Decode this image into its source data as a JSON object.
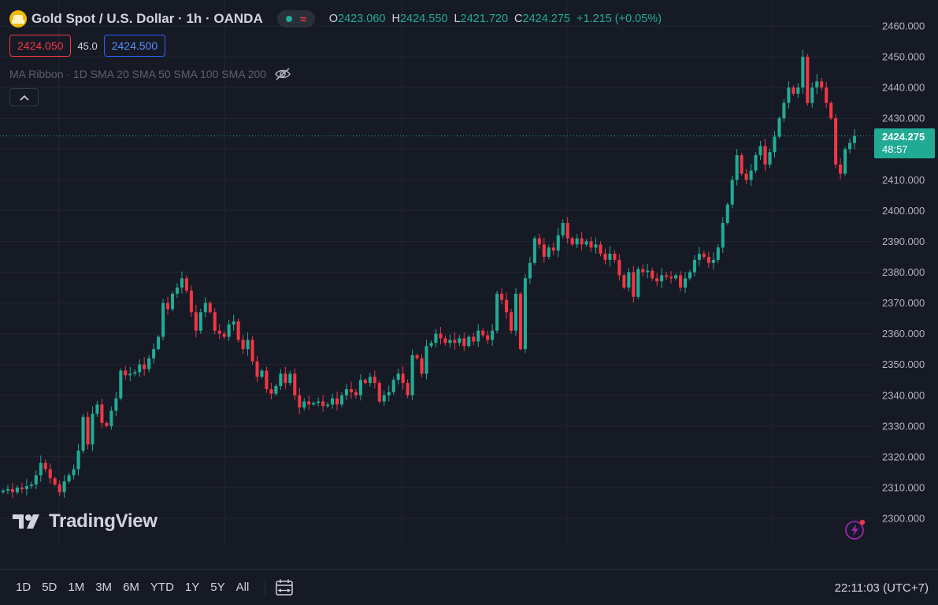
{
  "header": {
    "symbol_title": "Gold Spot / U.S. Dollar · 1h · OANDA",
    "ohlc": [
      {
        "key": "O",
        "value": "2423.060"
      },
      {
        "key": "H",
        "value": "2424.550"
      },
      {
        "key": "L",
        "value": "2421.720"
      },
      {
        "key": "C",
        "value": "2424.275"
      }
    ],
    "change": "+1.215 (+0.05%)",
    "bid": "2424.050",
    "spread": "45.0",
    "ask": "2424.500",
    "indicator": "MA Ribbon · 1D SMA 20 SMA 50 SMA 100 SMA 200"
  },
  "brand": {
    "name": "TradingView"
  },
  "price_axis": {
    "current_price": "2424.275",
    "countdown": "48:57"
  },
  "bottom_bar": {
    "ranges": [
      "1D",
      "5D",
      "1M",
      "3M",
      "6M",
      "YTD",
      "1Y",
      "5Y",
      "All"
    ],
    "clock": "22:11:03 (UTC+7)"
  },
  "colors": {
    "up": "#22ab94",
    "down": "#f23645",
    "background": "#161a25",
    "grid": "#232632",
    "accent": "#2962ff"
  },
  "icons": [
    "gold-symbol-icon",
    "eye-off-icon",
    "chevron-up-icon",
    "tradingview-logo-icon",
    "flash-icon",
    "calendar-range-icon"
  ],
  "chart_data": {
    "type": "candlestick",
    "ylim": [
      2300,
      2460
    ],
    "yticks": [
      "2300.000",
      "2310.000",
      "2320.000",
      "2330.000",
      "2340.000",
      "2350.000",
      "2360.000",
      "2370.000",
      "2380.000",
      "2390.000",
      "2400.000",
      "2410.000",
      "2420.000",
      "2430.000",
      "2440.000",
      "2450.000",
      "2460.000"
    ],
    "grid": true,
    "last_price": 2424.275,
    "closes": [
      2309,
      2309.5,
      2308.5,
      2310,
      2309.5,
      2310.5,
      2311,
      2314,
      2318,
      2316,
      2313,
      2311,
      2308.5,
      2312,
      2314,
      2316,
      2322,
      2333,
      2324,
      2334,
      2337,
      2331,
      2330,
      2335,
      2339,
      2348,
      2346.5,
      2347,
      2347.5,
      2350,
      2348.5,
      2352,
      2355,
      2359,
      2370,
      2368,
      2373,
      2375,
      2378,
      2374,
      2367,
      2361,
      2367,
      2370,
      2367,
      2361,
      2360,
      2359,
      2363,
      2364,
      2358,
      2355,
      2358,
      2351,
      2346,
      2348,
      2342,
      2340.5,
      2343,
      2347,
      2344,
      2347,
      2340,
      2336,
      2338,
      2337,
      2337.5,
      2338,
      2336.5,
      2337,
      2339,
      2337,
      2340,
      2342,
      2341,
      2340,
      2345,
      2344,
      2346,
      2344,
      2338,
      2340,
      2341,
      2345,
      2347,
      2344,
      2340,
      2353,
      2352,
      2347,
      2356,
      2357,
      2360,
      2358.5,
      2357,
      2358,
      2357,
      2358.5,
      2356,
      2359,
      2357.5,
      2361,
      2359.5,
      2358,
      2361,
      2373,
      2371,
      2367,
      2361,
      2373,
      2355,
      2378,
      2383,
      2391,
      2389,
      2385,
      2388,
      2387,
      2392,
      2396,
      2391,
      2389,
      2391,
      2389,
      2390,
      2388,
      2389,
      2386,
      2384,
      2386,
      2384,
      2379,
      2375,
      2380,
      2372,
      2381,
      2380,
      2380.5,
      2378,
      2377,
      2379,
      2378.5,
      2378,
      2379,
      2375,
      2378,
      2380,
      2384,
      2386,
      2385,
      2383,
      2384,
      2388,
      2396,
      2402,
      2410,
      2418,
      2412,
      2410,
      2413,
      2418,
      2421,
      2415,
      2419,
      2424,
      2430,
      2435,
      2440,
      2438,
      2440,
      2450,
      2435,
      2440,
      2442,
      2440,
      2435,
      2430,
      2415,
      2412,
      2420,
      2422,
      2424.275
    ]
  }
}
